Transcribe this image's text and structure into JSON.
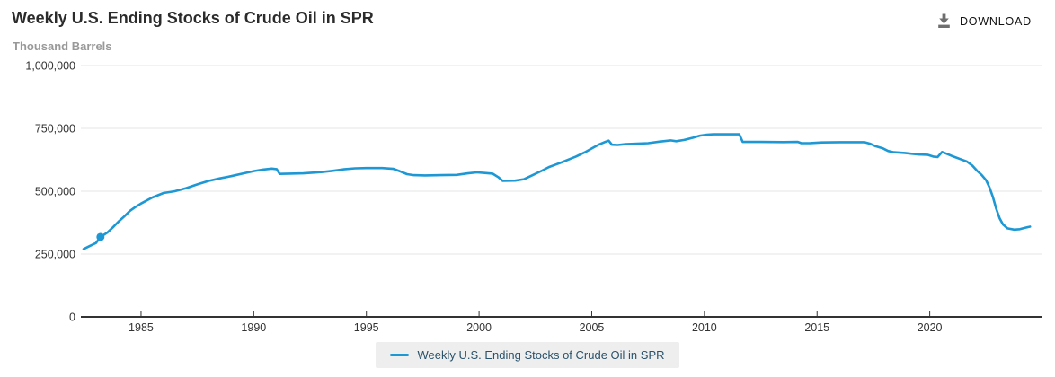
{
  "header": {
    "title": "Weekly U.S. Ending Stocks of Crude Oil in SPR",
    "units_label": "Thousand Barrels",
    "download_label": "DOWNLOAD",
    "download_icon": "download-arrow-into-tray"
  },
  "legend": {
    "label": "Weekly U.S. Ending Stocks of Crude Oil in SPR",
    "position": "bottom-center"
  },
  "colors": {
    "series_line": "#1e98d4",
    "legend_background": "#eeeeee",
    "legend_text": "#29526b",
    "gridline": "#e6e6e6",
    "axis_line": "#333333",
    "tick_label": "#333333",
    "title_text": "#2b2b2b",
    "units_text": "#999999",
    "download_icon": "#6e6e6e"
  },
  "chart_data": {
    "type": "line",
    "title": "Weekly U.S. Ending Stocks of Crude Oil in SPR",
    "xlabel": "",
    "ylabel": "Thousand Barrels",
    "grid": true,
    "legend_position": "bottom",
    "xlim": [
      1982.33,
      2025.0
    ],
    "ylim": [
      0,
      1000000
    ],
    "x_ticks": [
      1985,
      1990,
      1995,
      2000,
      2005,
      2010,
      2015,
      2020
    ],
    "y_ticks": [
      0,
      250000,
      500000,
      750000,
      1000000
    ],
    "y_tick_labels": [
      "0",
      "250,000",
      "500,000",
      "750,000",
      "1,000,000"
    ],
    "marker_point": {
      "x": 1983.2,
      "y": 318000
    },
    "series": [
      {
        "name": "Weekly U.S. Ending Stocks of Crude Oil in SPR",
        "color": "#1e98d4",
        "points": [
          [
            1982.45,
            270000
          ],
          [
            1982.7,
            281000
          ],
          [
            1983.0,
            294000
          ],
          [
            1983.2,
            318000
          ],
          [
            1983.5,
            335000
          ],
          [
            1983.75,
            356000
          ],
          [
            1984.0,
            379000
          ],
          [
            1984.25,
            399000
          ],
          [
            1984.5,
            421000
          ],
          [
            1984.75,
            437000
          ],
          [
            1985.0,
            451000
          ],
          [
            1985.5,
            475000
          ],
          [
            1986.0,
            493000
          ],
          [
            1986.5,
            500000
          ],
          [
            1987.0,
            512000
          ],
          [
            1987.5,
            527000
          ],
          [
            1988.0,
            541000
          ],
          [
            1988.5,
            551000
          ],
          [
            1989.0,
            560000
          ],
          [
            1989.5,
            570000
          ],
          [
            1990.0,
            580000
          ],
          [
            1990.4,
            586000
          ],
          [
            1990.8,
            590000
          ],
          [
            1991.02,
            588000
          ],
          [
            1991.15,
            569000
          ],
          [
            1991.6,
            570000
          ],
          [
            1992.2,
            571000
          ],
          [
            1993.0,
            576000
          ],
          [
            1993.5,
            581000
          ],
          [
            1994.0,
            587000
          ],
          [
            1994.5,
            591000
          ],
          [
            1995.0,
            592000
          ],
          [
            1995.7,
            592000
          ],
          [
            1996.2,
            589000
          ],
          [
            1996.5,
            579000
          ],
          [
            1996.8,
            568000
          ],
          [
            1997.1,
            564000
          ],
          [
            1997.6,
            563000
          ],
          [
            1998.3,
            564000
          ],
          [
            1999.0,
            565000
          ],
          [
            1999.5,
            571000
          ],
          [
            1999.9,
            575000
          ],
          [
            2000.2,
            573000
          ],
          [
            2000.6,
            570000
          ],
          [
            2000.85,
            556000
          ],
          [
            2001.05,
            541000
          ],
          [
            2001.6,
            542000
          ],
          [
            2002.0,
            548000
          ],
          [
            2002.4,
            565000
          ],
          [
            2002.8,
            582000
          ],
          [
            2003.1,
            596000
          ],
          [
            2003.4,
            606000
          ],
          [
            2003.7,
            616000
          ],
          [
            2004.0,
            627000
          ],
          [
            2004.3,
            638000
          ],
          [
            2004.7,
            655000
          ],
          [
            2005.0,
            670000
          ],
          [
            2005.3,
            685000
          ],
          [
            2005.6,
            696000
          ],
          [
            2005.75,
            701000
          ],
          [
            2005.9,
            685000
          ],
          [
            2006.15,
            684000
          ],
          [
            2006.5,
            687000
          ],
          [
            2007.0,
            689000
          ],
          [
            2007.5,
            691000
          ],
          [
            2008.0,
            697000
          ],
          [
            2008.5,
            702000
          ],
          [
            2008.75,
            699000
          ],
          [
            2009.1,
            704000
          ],
          [
            2009.5,
            713000
          ],
          [
            2009.8,
            721000
          ],
          [
            2010.1,
            725000
          ],
          [
            2010.4,
            726500
          ],
          [
            2011.0,
            726600
          ],
          [
            2011.55,
            726600
          ],
          [
            2011.7,
            696000
          ],
          [
            2012.5,
            695900
          ],
          [
            2013.5,
            695500
          ],
          [
            2014.15,
            696000
          ],
          [
            2014.3,
            691000
          ],
          [
            2014.7,
            691500
          ],
          [
            2015.2,
            694000
          ],
          [
            2016.0,
            695100
          ],
          [
            2017.1,
            695000
          ],
          [
            2017.35,
            689000
          ],
          [
            2017.6,
            679000
          ],
          [
            2017.9,
            671000
          ],
          [
            2018.15,
            660000
          ],
          [
            2018.4,
            655000
          ],
          [
            2018.9,
            652000
          ],
          [
            2019.2,
            649000
          ],
          [
            2019.5,
            646000
          ],
          [
            2019.9,
            645000
          ],
          [
            2020.15,
            638000
          ],
          [
            2020.35,
            636000
          ],
          [
            2020.55,
            656000
          ],
          [
            2020.8,
            647000
          ],
          [
            2021.05,
            638000
          ],
          [
            2021.35,
            628000
          ],
          [
            2021.65,
            618000
          ],
          [
            2021.9,
            601000
          ],
          [
            2022.1,
            581000
          ],
          [
            2022.3,
            565000
          ],
          [
            2022.5,
            544000
          ],
          [
            2022.65,
            515000
          ],
          [
            2022.8,
            478000
          ],
          [
            2022.95,
            430000
          ],
          [
            2023.1,
            392000
          ],
          [
            2023.25,
            368000
          ],
          [
            2023.45,
            352000
          ],
          [
            2023.75,
            347000
          ],
          [
            2024.0,
            349000
          ],
          [
            2024.25,
            355000
          ],
          [
            2024.45,
            359000
          ]
        ]
      }
    ]
  }
}
